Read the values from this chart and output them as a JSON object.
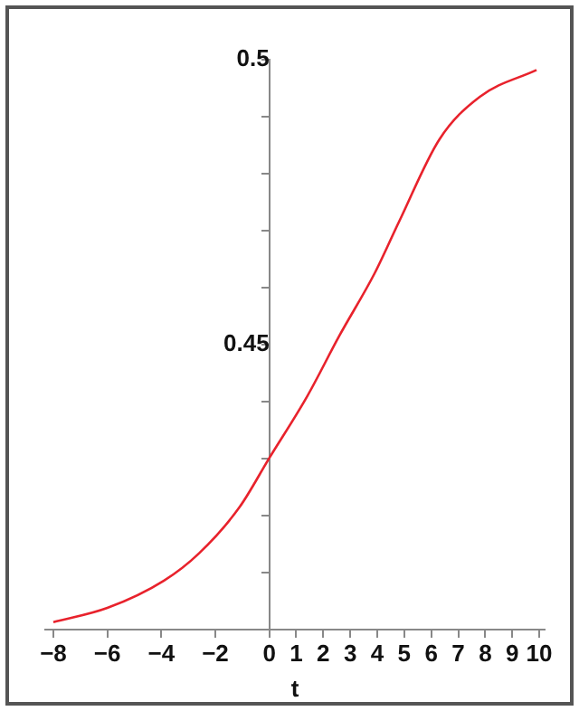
{
  "chart_data": {
    "type": "line",
    "xlabel": "t",
    "x": [
      -8,
      -6,
      -3.9,
      -2.6,
      -1.1,
      0,
      1.4,
      2.6,
      3.9,
      4.8,
      6.3,
      7.8,
      9.9
    ],
    "series": [
      {
        "color": "#e8222c",
        "values": [
          0.4013,
          0.4038,
          0.4086,
          0.4134,
          0.4215,
          0.4301,
          0.4409,
          0.4516,
          0.4625,
          0.4715,
          0.486,
          0.4935,
          0.4982
        ]
      }
    ],
    "xlim": [
      -8.3,
      10.2
    ],
    "ylim": [
      0.4,
      0.5
    ],
    "xticks": [
      {
        "value": -8,
        "label": "−8"
      },
      {
        "value": -6,
        "label": "−6"
      },
      {
        "value": -4,
        "label": "−4"
      },
      {
        "value": -2,
        "label": "−2"
      },
      0,
      1,
      2,
      3,
      4,
      5,
      6,
      7,
      8,
      9,
      10
    ],
    "yticks": [
      {
        "value": 0.4,
        "label": null
      },
      {
        "value": 0.41,
        "label": null
      },
      {
        "value": 0.42,
        "label": null
      },
      {
        "value": 0.43,
        "label": null
      },
      {
        "value": 0.44,
        "label": null
      },
      0.45,
      {
        "value": 0.46,
        "label": null
      },
      {
        "value": 0.47,
        "label": null
      },
      {
        "value": 0.48,
        "label": null
      },
      {
        "value": 0.49,
        "label": null
      },
      0.5
    ],
    "grid": false,
    "legend": false,
    "marker": "none",
    "line_style": "solid"
  }
}
